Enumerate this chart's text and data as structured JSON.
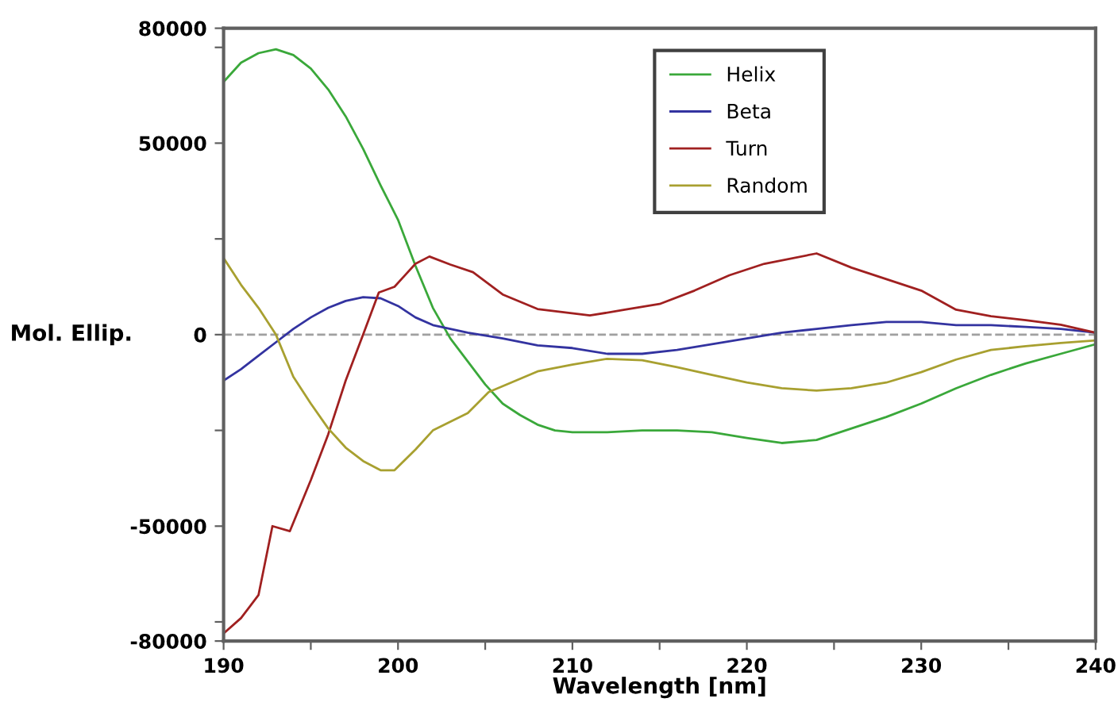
{
  "chart_data": {
    "type": "line",
    "xlabel": "Wavelength [nm]",
    "ylabel": "Mol. Ellip.",
    "xlim": [
      190,
      240
    ],
    "xticks": [
      190,
      {
        "value": 195,
        "label": null
      },
      200,
      {
        "value": 205,
        "label": null
      },
      210,
      {
        "value": 215,
        "label": null
      },
      220,
      {
        "value": 225,
        "label": null
      },
      230,
      {
        "value": 235,
        "label": null
      },
      240
    ],
    "ylim": [
      -80000,
      80000
    ],
    "yticks": [
      -80000,
      {
        "value": -75000,
        "label": null
      },
      -50000,
      {
        "value": -25000,
        "label": null
      },
      0,
      {
        "value": 25000,
        "label": null
      },
      50000,
      {
        "value": 75000,
        "label": null
      },
      80000
    ],
    "grid": false,
    "legend": "top right",
    "line_style": "solid",
    "marker": "none",
    "ref_lines": [
      {
        "axis": "y",
        "value": 0,
        "color": "#a0a0a0",
        "line_style": "dashed"
      }
    ],
    "series": [
      {
        "name": "Helix",
        "color": "#3aa83a",
        "x": [
          190,
          191,
          192,
          193,
          194,
          195,
          196,
          197,
          198,
          199,
          200,
          201,
          202,
          203,
          204,
          205,
          206,
          207,
          208,
          209,
          210,
          212,
          214,
          216,
          218,
          220,
          222,
          224,
          226,
          228,
          230,
          232,
          234,
          236,
          238,
          240
        ],
        "values": [
          66000,
          71000,
          73500,
          74500,
          73000,
          69500,
          64000,
          57000,
          48500,
          39000,
          30000,
          18000,
          7000,
          -1000,
          -7000,
          -13000,
          -18000,
          -21000,
          -23500,
          -25000,
          -25500,
          -25500,
          -25000,
          -25000,
          -25500,
          -27000,
          -28300,
          -27500,
          -24500,
          -21500,
          -18000,
          -14000,
          -10500,
          -7500,
          -5000,
          -2500
        ]
      },
      {
        "name": "Beta",
        "color": "#3333a0",
        "x": [
          190,
          191,
          192,
          193,
          194,
          195,
          196,
          197,
          198,
          199,
          200,
          201,
          202,
          203,
          204,
          206,
          208,
          210,
          212,
          214,
          216,
          218,
          220,
          222,
          224,
          226,
          228,
          230,
          232,
          234,
          236,
          238,
          240
        ],
        "values": [
          -12000,
          -9000,
          -5500,
          -2000,
          1500,
          4500,
          7000,
          8800,
          9800,
          9500,
          7500,
          4500,
          2500,
          1500,
          500,
          -1000,
          -2800,
          -3500,
          -5000,
          -5000,
          -4000,
          -2500,
          -1000,
          500,
          1500,
          2500,
          3300,
          3300,
          2500,
          2500,
          2000,
          1500,
          500
        ]
      },
      {
        "name": "Turn",
        "color": "#a02020",
        "x": [
          190,
          191,
          192,
          192.8,
          193.8,
          195,
          196,
          197,
          198,
          198.9,
          199.8,
          201,
          201.8,
          203,
          204.3,
          206,
          208,
          211,
          213,
          215,
          217,
          219,
          221,
          224,
          226,
          228,
          230,
          232,
          234,
          236,
          238,
          240
        ],
        "values": [
          -78000,
          -74000,
          -68000,
          -50000,
          -51300,
          -38000,
          -26000,
          -12000,
          0,
          11000,
          12500,
          18500,
          20400,
          18300,
          16300,
          10500,
          6700,
          5000,
          6500,
          8000,
          11500,
          15500,
          18500,
          21200,
          17500,
          14500,
          11500,
          6500,
          4800,
          3800,
          2600,
          500
        ]
      },
      {
        "name": "Random",
        "color": "#a8a030",
        "x": [
          190,
          191,
          192,
          193,
          194,
          195,
          196,
          197,
          198,
          199,
          199.8,
          201,
          202,
          204,
          205.2,
          208,
          210,
          212,
          214,
          216,
          218,
          220,
          222,
          224,
          226,
          228,
          230,
          232,
          234,
          236,
          238,
          240
        ],
        "values": [
          20000,
          13000,
          7000,
          0,
          -11000,
          -18000,
          -24500,
          -29500,
          -33000,
          -35400,
          -35400,
          -30000,
          -25000,
          -20500,
          -15000,
          -9600,
          -7800,
          -6300,
          -6700,
          -8500,
          -10500,
          -12500,
          -14000,
          -14600,
          -14000,
          -12500,
          -9800,
          -6500,
          -4000,
          -3000,
          -2200,
          -1500
        ]
      }
    ]
  }
}
